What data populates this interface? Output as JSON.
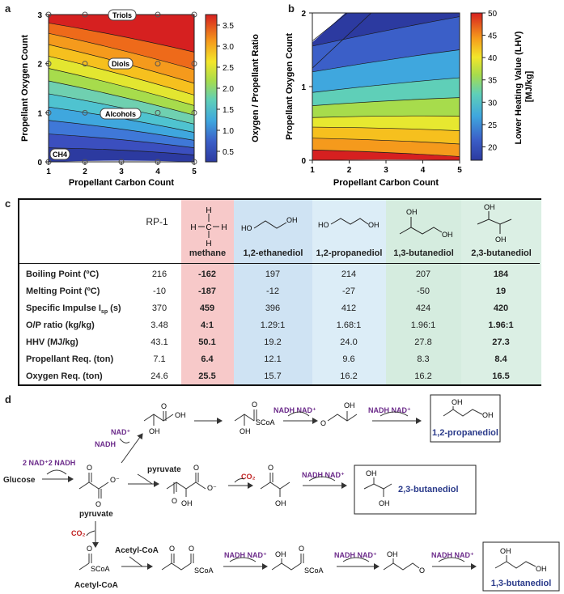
{
  "panels": {
    "a": "a",
    "b": "b",
    "c": "c",
    "d": "d"
  },
  "chart_data": [
    {
      "type": "heatmap",
      "panel": "a",
      "xlabel": "Propellant Carbon Count",
      "ylabel": "Propellant Oxygen Count",
      "xlim": [
        1,
        5
      ],
      "ylim": [
        0,
        3
      ],
      "xticks": [
        "1",
        "2",
        "3",
        "4",
        "5"
      ],
      "yticks": [
        "0",
        "1",
        "2",
        "3"
      ],
      "colorbar_label": "Oxygen / Propellant Ratio",
      "colorbar_ticks": [
        "0.5",
        "1.0",
        "1.5",
        "2.0",
        "2.5",
        "3.0",
        "3.5"
      ],
      "colorbar_range": [
        0.25,
        3.75
      ],
      "annotations": [
        "Triols",
        "Diols",
        "Alcohols",
        "CH4"
      ],
      "points_x": [
        1,
        2,
        3,
        4,
        5
      ],
      "points_y": [
        0,
        1,
        2,
        3
      ]
    },
    {
      "type": "heatmap",
      "panel": "b",
      "xlabel": "Propellant Carbon Count",
      "ylabel": "Propellant Oxygen Count",
      "xlim": [
        1,
        5
      ],
      "ylim": [
        0,
        2
      ],
      "xticks": [
        "1",
        "2",
        "3",
        "4",
        "5"
      ],
      "yticks": [
        "0",
        "1",
        "2"
      ],
      "colorbar_label": "Lower Heating Value (LHV) [MJ/kg]",
      "colorbar_ticks": [
        "20",
        "25",
        "30",
        "35",
        "40",
        "45",
        "50"
      ],
      "colorbar_range": [
        17,
        50
      ]
    }
  ],
  "table": {
    "rp1_label": "RP-1",
    "columns": [
      "methane",
      "1,2-ethanediol",
      "1,2-propanediol",
      "1,3-butanediol",
      "2,3-butanediol"
    ],
    "rows": [
      {
        "label": "Boiling Point (ºC)",
        "values": [
          "216",
          "-162",
          "197",
          "214",
          "207",
          "184"
        ]
      },
      {
        "label": "Melting Point (ºC)",
        "values": [
          "-10",
          "-187",
          "-12",
          "-27",
          "-50",
          "19"
        ]
      },
      {
        "label": "Specific Impulse I",
        "sub": "sp",
        "unit": " (s)",
        "values": [
          "370",
          "459",
          "396",
          "412",
          "424",
          "420"
        ]
      },
      {
        "label": "O/P ratio (kg/kg)",
        "values": [
          "3.48",
          "4:1",
          "1.29:1",
          "1.68:1",
          "1.96:1",
          "1.96:1"
        ]
      },
      {
        "label": "HHV (MJ/kg)",
        "values": [
          "43.1",
          "50.1",
          "19.2",
          "24.0",
          "27.8",
          "27.3"
        ]
      },
      {
        "label": "Propellant Req. (ton)",
        "values": [
          "7.1",
          "6.4",
          "12.1",
          "9.6",
          "8.3",
          "8.4"
        ]
      },
      {
        "label": "Oxygen Req. (ton)",
        "values": [
          "24.6",
          "25.5",
          "15.7",
          "16.2",
          "16.2",
          "16.5"
        ]
      }
    ],
    "methane_structure": {
      "c": "C",
      "h": "H"
    },
    "oh_label": "OH",
    "ho_label": "HO"
  },
  "pathway": {
    "glucose": "Glucose",
    "cofactor_top": "2 NAD⁺2 NADH",
    "pyruvate_label": "pyruvate",
    "pyruvate_arrow": "pyruvate",
    "acetyl_coa_label": "Acetyl-CoA",
    "acetyl_coa_arrow": "Acetyl-CoA",
    "co2": "CO₂",
    "nad": "NAD⁺",
    "nadh": "NADH",
    "nadh_nad": "NADH  NAD⁺",
    "scoa": "SCoA",
    "oh": "OH",
    "o": "O",
    "ominus": "O⁻",
    "products": [
      "1,2-propanediol",
      "2,3-butanediol",
      "1,3-butanediol"
    ]
  }
}
